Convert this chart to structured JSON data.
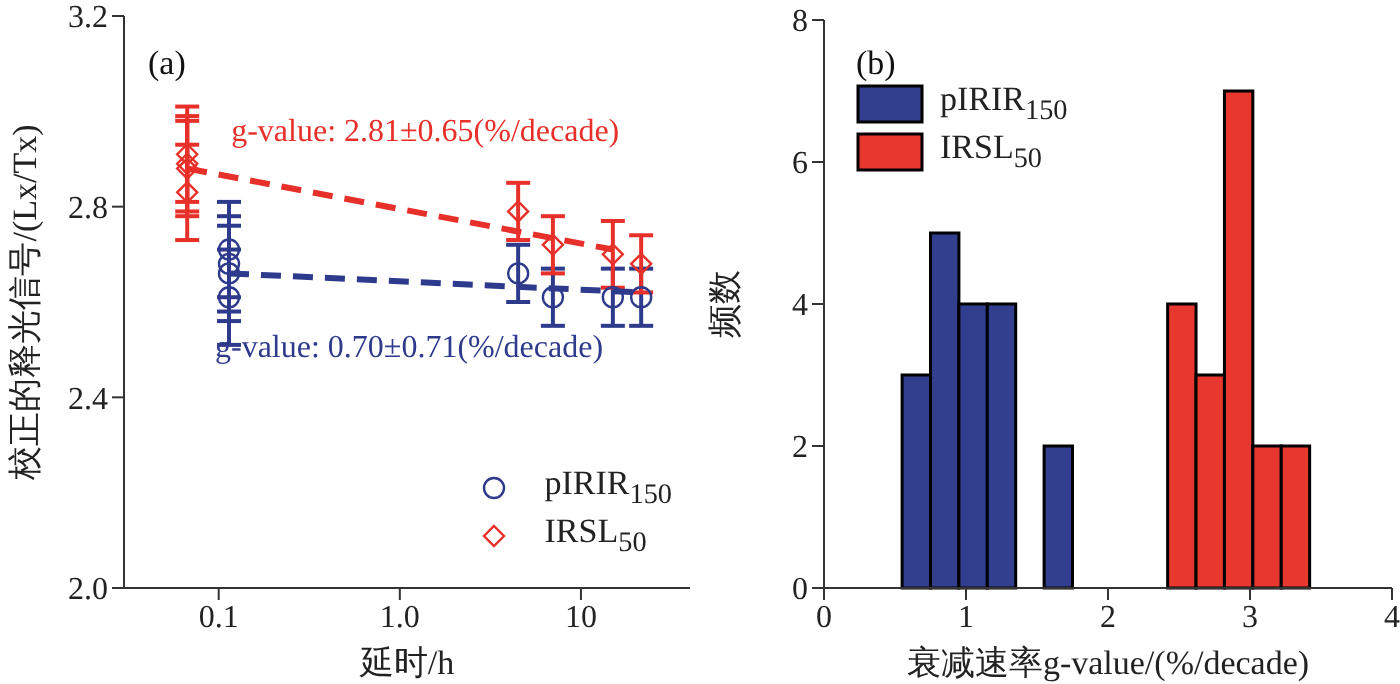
{
  "chart_data": [
    {
      "type": "scatter",
      "xlabel": "延时/h",
      "ylabel": "校正的释光信号/(Lx/Tx)",
      "log": "x",
      "xlim": [
        0.03,
        40
      ],
      "xticks": [
        0.1,
        {
          "value": 1,
          "label": "1.0"
        },
        10
      ],
      "ylim": [
        2.0,
        3.2
      ],
      "yticks": [
        {
          "value": 2,
          "label": "2.0"
        },
        {
          "value": 2.4,
          "label": "2.4"
        },
        {
          "value": 2.8,
          "label": "2.8"
        },
        {
          "value": 3.2,
          "label": "3.2"
        }
      ],
      "legend": "bottom right",
      "annotations": [
        "(a)",
        {
          "text": "g-value: 0.70±0.71(%/decade)",
          "x": 0.114,
          "y": 2.66
        },
        {
          "text": "g-value: 2.81±0.65(%/decade)",
          "x": 0.067,
          "y": 2.88
        }
      ],
      "series": [
        {
          "name": "pIRIR$_{150}$",
          "type": "scatter",
          "marker": "circle",
          "color": "#2e3a8c",
          "x": [
            0.114,
            0.114,
            0.114,
            0.114,
            4.5,
            7.0,
            15,
            21.5
          ],
          "values": [
            2.71,
            2.68,
            2.66,
            2.61,
            2.66,
            2.61,
            2.61,
            2.61
          ],
          "errors": [
            0.1,
            0.1,
            0.1,
            0.1,
            0.06,
            0.06,
            0.06,
            0.06
          ]
        },
        {
          "name": "IRSL$_{50}$",
          "type": "scatter",
          "marker": "diamond",
          "color": "#e8302a",
          "x": [
            0.067,
            0.067,
            0.067,
            0.067,
            4.5,
            7.0,
            15,
            21.5
          ],
          "values": [
            2.91,
            2.89,
            2.88,
            2.83,
            2.79,
            2.72,
            2.7,
            2.68
          ],
          "errors": [
            0.1,
            0.1,
            0.1,
            0.1,
            0.06,
            0.06,
            0.07,
            0.06
          ]
        },
        {
          "type": "line",
          "line_style": "dashed",
          "color": "#2e3a8c",
          "x": [
            0.114,
            21.5
          ],
          "values": [
            2.66,
            2.62
          ]
        },
        {
          "type": "line",
          "line_style": "dashed",
          "color": "#e8302a",
          "x": [
            0.067,
            15
          ],
          "values": [
            2.88,
            2.71
          ]
        }
      ]
    },
    {
      "type": "histogram",
      "xlabel": "衰减速率g-value/(%/decade)",
      "ylabel": "频数",
      "xlim": [
        0,
        4
      ],
      "xticks": [
        0,
        1,
        2,
        3,
        4
      ],
      "ylim": [
        0,
        8
      ],
      "yticks": [
        0,
        2,
        4,
        6,
        8
      ],
      "legend": "top left",
      "annotations": [
        "(b)"
      ],
      "bins": [
        0.55,
        0.75,
        0.95,
        1.15,
        1.35,
        1.55,
        1.75,
        2.42,
        2.62,
        2.82,
        3.02,
        3.22,
        3.42
      ],
      "series": [
        {
          "name": "pIRIR$_{150}$",
          "color": "#323f8f",
          "values": [
            3,
            5,
            4,
            4,
            0,
            2,
            null,
            null,
            null,
            null,
            null,
            null
          ]
        },
        {
          "name": "IRSL$_{50}$",
          "color": "#e8372f",
          "values": [
            null,
            null,
            null,
            null,
            null,
            null,
            null,
            4,
            3,
            7,
            2,
            2
          ]
        }
      ]
    }
  ]
}
